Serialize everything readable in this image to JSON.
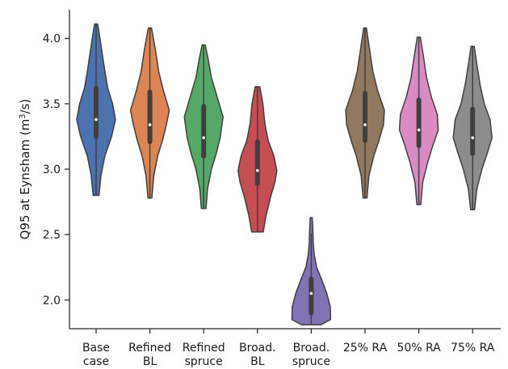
{
  "chart_data": {
    "type": "violin",
    "title": "",
    "xlabel": "",
    "ylabel": "Q95 at Eynsham (m³/s)",
    "ylabel_parts": {
      "before": "Q95 at Eynsham (m",
      "sup": "3",
      "after": "/s)"
    },
    "ylim": [
      1.78,
      4.22
    ],
    "yticks": [
      2.0,
      2.5,
      3.0,
      3.5,
      4.0
    ],
    "ytick_labels": [
      "2.0",
      "2.5",
      "3.0",
      "3.5",
      "4.0"
    ],
    "grid": false,
    "categories": [
      {
        "name": "Base case",
        "lines": [
          "Base",
          "case"
        ]
      },
      {
        "name": "Refined BL",
        "lines": [
          "Refined",
          "BL"
        ]
      },
      {
        "name": "Refined spruce",
        "lines": [
          "Refined",
          "spruce"
        ]
      },
      {
        "name": "Broad. BL",
        "lines": [
          "Broad.",
          "BL"
        ]
      },
      {
        "name": "Broad. spruce",
        "lines": [
          "Broad.",
          "spruce"
        ]
      },
      {
        "name": "25% RA",
        "lines": [
          "25% RA"
        ]
      },
      {
        "name": "50% RA",
        "lines": [
          "50% RA"
        ]
      },
      {
        "name": "75% RA",
        "lines": [
          "75% RA"
        ]
      }
    ],
    "series": [
      {
        "color": "#4c72b0",
        "min": 2.8,
        "max": 4.11,
        "q1": 3.25,
        "median": 3.38,
        "q3": 3.62,
        "whisker_low": 2.8,
        "whisker_high": 4.11,
        "density": [
          [
            2.8,
            0.15
          ],
          [
            2.95,
            0.25
          ],
          [
            3.1,
            0.45
          ],
          [
            3.25,
            0.8
          ],
          [
            3.38,
            1.0
          ],
          [
            3.5,
            0.85
          ],
          [
            3.62,
            0.6
          ],
          [
            3.75,
            0.45
          ],
          [
            3.9,
            0.3
          ],
          [
            4.0,
            0.2
          ],
          [
            4.11,
            0.08
          ]
        ]
      },
      {
        "color": "#dd8452",
        "min": 2.78,
        "max": 4.08,
        "q1": 3.21,
        "median": 3.34,
        "q3": 3.59,
        "whisker_low": 2.78,
        "whisker_high": 4.08,
        "density": [
          [
            2.78,
            0.1
          ],
          [
            2.95,
            0.2
          ],
          [
            3.1,
            0.4
          ],
          [
            3.22,
            0.65
          ],
          [
            3.34,
            0.85
          ],
          [
            3.45,
            1.0
          ],
          [
            3.6,
            0.7
          ],
          [
            3.75,
            0.45
          ],
          [
            3.9,
            0.3
          ],
          [
            4.0,
            0.18
          ],
          [
            4.08,
            0.08
          ]
        ]
      },
      {
        "color": "#55a868",
        "min": 2.7,
        "max": 3.95,
        "q1": 3.1,
        "median": 3.24,
        "q3": 3.48,
        "whisker_low": 2.7,
        "whisker_high": 3.95,
        "density": [
          [
            2.7,
            0.12
          ],
          [
            2.85,
            0.2
          ],
          [
            3.0,
            0.4
          ],
          [
            3.12,
            0.65
          ],
          [
            3.24,
            0.85
          ],
          [
            3.4,
            1.0
          ],
          [
            3.55,
            0.7
          ],
          [
            3.7,
            0.4
          ],
          [
            3.85,
            0.22
          ],
          [
            3.95,
            0.08
          ]
        ]
      },
      {
        "color": "#c44e52",
        "min": 2.52,
        "max": 3.63,
        "q1": 2.89,
        "median": 2.99,
        "q3": 3.21,
        "whisker_low": 2.52,
        "whisker_high": 3.63,
        "density": [
          [
            2.52,
            0.3
          ],
          [
            2.65,
            0.45
          ],
          [
            2.8,
            0.7
          ],
          [
            2.9,
            0.9
          ],
          [
            2.99,
            1.0
          ],
          [
            3.1,
            0.85
          ],
          [
            3.22,
            0.55
          ],
          [
            3.35,
            0.38
          ],
          [
            3.5,
            0.28
          ],
          [
            3.63,
            0.12
          ]
        ]
      },
      {
        "color": "#8172b3",
        "min": 1.81,
        "max": 2.63,
        "q1": 1.9,
        "median": 2.05,
        "q3": 2.16,
        "whisker_low": 1.81,
        "whisker_high": 2.51,
        "density": [
          [
            1.81,
            0.5
          ],
          [
            1.85,
            1.0
          ],
          [
            1.95,
            0.98
          ],
          [
            2.05,
            0.8
          ],
          [
            2.15,
            0.55
          ],
          [
            2.25,
            0.28
          ],
          [
            2.35,
            0.15
          ],
          [
            2.45,
            0.1
          ],
          [
            2.55,
            0.08
          ],
          [
            2.63,
            0.05
          ]
        ]
      },
      {
        "color": "#937860",
        "min": 2.78,
        "max": 4.08,
        "q1": 3.22,
        "median": 3.34,
        "q3": 3.58,
        "whisker_low": 2.78,
        "whisker_high": 4.08,
        "density": [
          [
            2.78,
            0.1
          ],
          [
            2.95,
            0.2
          ],
          [
            3.1,
            0.45
          ],
          [
            3.22,
            0.72
          ],
          [
            3.34,
            0.95
          ],
          [
            3.45,
            1.0
          ],
          [
            3.6,
            0.65
          ],
          [
            3.75,
            0.4
          ],
          [
            3.9,
            0.25
          ],
          [
            4.0,
            0.15
          ],
          [
            4.08,
            0.07
          ]
        ]
      },
      {
        "color": "#da8bc3",
        "min": 2.73,
        "max": 4.01,
        "q1": 3.18,
        "median": 3.3,
        "q3": 3.53,
        "whisker_low": 2.73,
        "whisker_high": 4.01,
        "density": [
          [
            2.73,
            0.1
          ],
          [
            2.9,
            0.2
          ],
          [
            3.05,
            0.45
          ],
          [
            3.18,
            0.72
          ],
          [
            3.3,
            1.0
          ],
          [
            3.42,
            0.95
          ],
          [
            3.55,
            0.65
          ],
          [
            3.7,
            0.4
          ],
          [
            3.85,
            0.25
          ],
          [
            4.01,
            0.08
          ]
        ]
      },
      {
        "color": "#8c8c8c",
        "min": 2.69,
        "max": 3.94,
        "q1": 3.12,
        "median": 3.24,
        "q3": 3.46,
        "whisker_low": 2.69,
        "whisker_high": 3.94,
        "density": [
          [
            2.69,
            0.1
          ],
          [
            2.85,
            0.22
          ],
          [
            3.0,
            0.48
          ],
          [
            3.12,
            0.75
          ],
          [
            3.24,
            1.0
          ],
          [
            3.38,
            0.9
          ],
          [
            3.5,
            0.6
          ],
          [
            3.65,
            0.38
          ],
          [
            3.8,
            0.22
          ],
          [
            3.94,
            0.08
          ]
        ]
      }
    ]
  }
}
